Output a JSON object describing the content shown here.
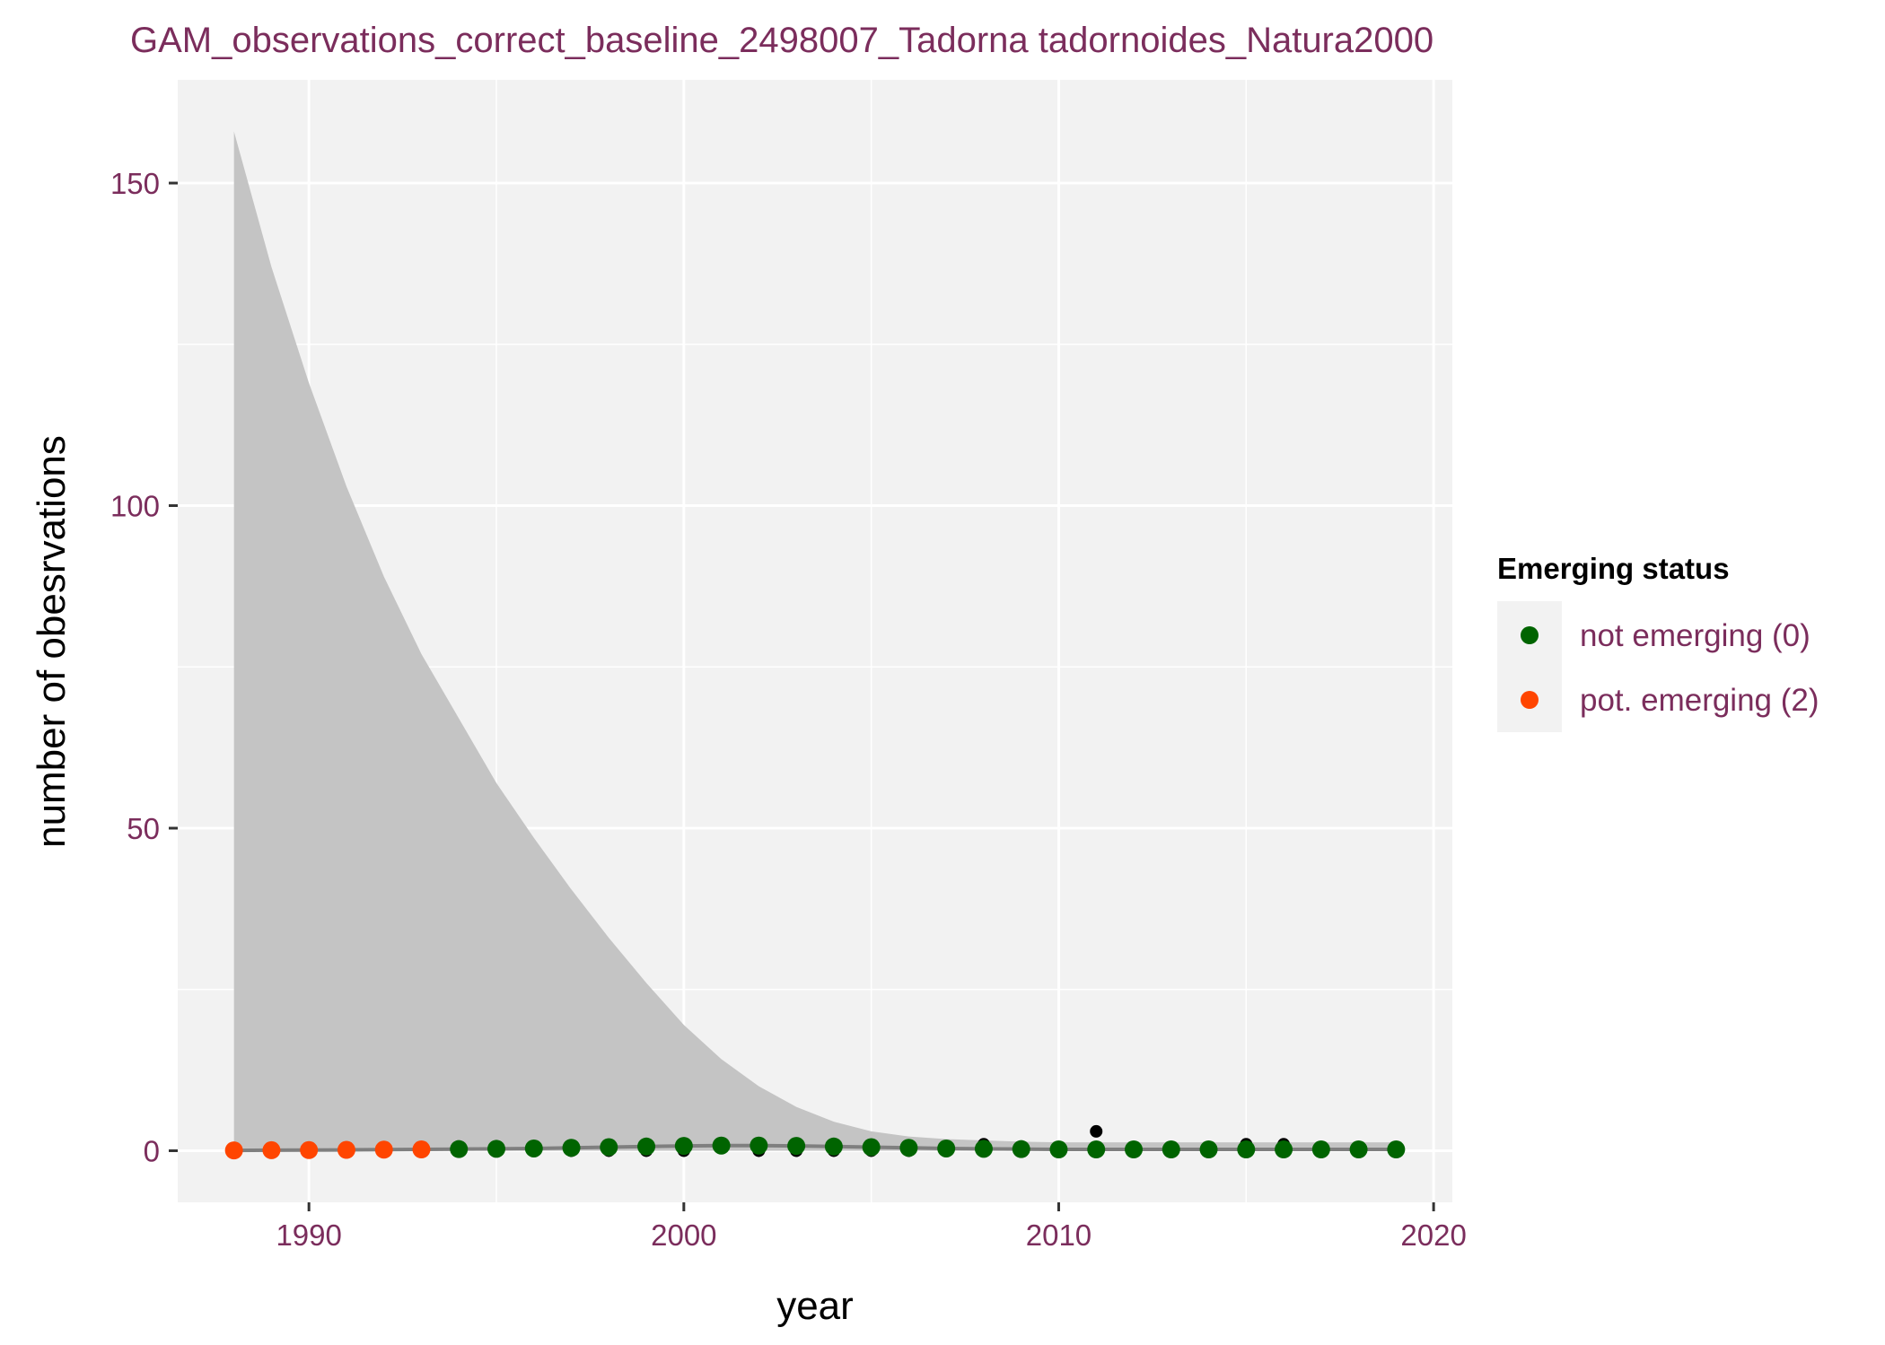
{
  "chart_data": {
    "type": "scatter",
    "title": "GAM_observations_correct_baseline_2498007_Tadorna tadornoides_Natura2000",
    "xlabel": "year",
    "ylabel": "number of obesrvations",
    "xlim": [
      1986.5,
      2020.5
    ],
    "ylim": [
      -8,
      166
    ],
    "x_ticks": [
      1990,
      2000,
      2010,
      2020
    ],
    "y_ticks": [
      0,
      50,
      100,
      150
    ],
    "grid": true,
    "legend": {
      "title": "Emerging status",
      "position": "right",
      "entries": [
        {
          "label": "not emerging (0)",
          "color": "#006400"
        },
        {
          "label": "pot. emerging (2)",
          "color": "#ff4500"
        }
      ]
    },
    "observed": {
      "color": "#000000",
      "points": [
        {
          "x": 1988,
          "y": 0
        },
        {
          "x": 1989,
          "y": 0
        },
        {
          "x": 1990,
          "y": 0
        },
        {
          "x": 1991,
          "y": 0
        },
        {
          "x": 1992,
          "y": 0
        },
        {
          "x": 1993,
          "y": 0
        },
        {
          "x": 1994,
          "y": 0
        },
        {
          "x": 1995,
          "y": 0
        },
        {
          "x": 1996,
          "y": 0
        },
        {
          "x": 1997,
          "y": 0
        },
        {
          "x": 1998,
          "y": 0
        },
        {
          "x": 1999,
          "y": 0
        },
        {
          "x": 2000,
          "y": 0
        },
        {
          "x": 2001,
          "y": 1
        },
        {
          "x": 2002,
          "y": 0
        },
        {
          "x": 2003,
          "y": 0
        },
        {
          "x": 2004,
          "y": 0
        },
        {
          "x": 2005,
          "y": 0
        },
        {
          "x": 2006,
          "y": 0
        },
        {
          "x": 2007,
          "y": 0
        },
        {
          "x": 2008,
          "y": 1
        },
        {
          "x": 2009,
          "y": 0
        },
        {
          "x": 2010,
          "y": 0
        },
        {
          "x": 2011,
          "y": 3
        },
        {
          "x": 2012,
          "y": 0
        },
        {
          "x": 2013,
          "y": 0
        },
        {
          "x": 2014,
          "y": 0
        },
        {
          "x": 2015,
          "y": 1
        },
        {
          "x": 2016,
          "y": 1
        },
        {
          "x": 2017,
          "y": 0
        },
        {
          "x": 2018,
          "y": 0
        },
        {
          "x": 2019,
          "y": 0
        }
      ]
    },
    "fit": {
      "line_color": "#7f7f7f",
      "ribbon_color": "#c4c4c4",
      "points": [
        {
          "x": 1988,
          "y": 0.05,
          "upper": 158,
          "status": 2
        },
        {
          "x": 1989,
          "y": 0.08,
          "upper": 137,
          "status": 2
        },
        {
          "x": 1990,
          "y": 0.1,
          "upper": 119,
          "status": 2
        },
        {
          "x": 1991,
          "y": 0.13,
          "upper": 103,
          "status": 2
        },
        {
          "x": 1992,
          "y": 0.17,
          "upper": 89,
          "status": 2
        },
        {
          "x": 1993,
          "y": 0.2,
          "upper": 77,
          "status": 2
        },
        {
          "x": 1994,
          "y": 0.25,
          "upper": 67,
          "status": 0
        },
        {
          "x": 1995,
          "y": 0.3,
          "upper": 57,
          "status": 0
        },
        {
          "x": 1996,
          "y": 0.35,
          "upper": 48.5,
          "status": 0
        },
        {
          "x": 1997,
          "y": 0.45,
          "upper": 40.5,
          "status": 0
        },
        {
          "x": 1998,
          "y": 0.55,
          "upper": 33,
          "status": 0
        },
        {
          "x": 1999,
          "y": 0.65,
          "upper": 26,
          "status": 0
        },
        {
          "x": 2000,
          "y": 0.75,
          "upper": 19.5,
          "status": 0
        },
        {
          "x": 2001,
          "y": 0.8,
          "upper": 14.2,
          "status": 0
        },
        {
          "x": 2002,
          "y": 0.8,
          "upper": 10,
          "status": 0
        },
        {
          "x": 2003,
          "y": 0.75,
          "upper": 6.8,
          "status": 0
        },
        {
          "x": 2004,
          "y": 0.65,
          "upper": 4.5,
          "status": 0
        },
        {
          "x": 2005,
          "y": 0.55,
          "upper": 3,
          "status": 0
        },
        {
          "x": 2006,
          "y": 0.45,
          "upper": 2.2,
          "status": 0
        },
        {
          "x": 2007,
          "y": 0.35,
          "upper": 1.8,
          "status": 0
        },
        {
          "x": 2008,
          "y": 0.3,
          "upper": 1.6,
          "status": 0
        },
        {
          "x": 2009,
          "y": 0.25,
          "upper": 1.4,
          "status": 0
        },
        {
          "x": 2010,
          "y": 0.2,
          "upper": 1.3,
          "status": 0
        },
        {
          "x": 2011,
          "y": 0.2,
          "upper": 1.3,
          "status": 0
        },
        {
          "x": 2012,
          "y": 0.2,
          "upper": 1.3,
          "status": 0
        },
        {
          "x": 2013,
          "y": 0.2,
          "upper": 1.3,
          "status": 0
        },
        {
          "x": 2014,
          "y": 0.2,
          "upper": 1.3,
          "status": 0
        },
        {
          "x": 2015,
          "y": 0.2,
          "upper": 1.3,
          "status": 0
        },
        {
          "x": 2016,
          "y": 0.2,
          "upper": 1.3,
          "status": 0
        },
        {
          "x": 2017,
          "y": 0.2,
          "upper": 1.3,
          "status": 0
        },
        {
          "x": 2018,
          "y": 0.2,
          "upper": 1.3,
          "status": 0
        },
        {
          "x": 2019,
          "y": 0.2,
          "upper": 1.3,
          "status": 0
        }
      ]
    }
  }
}
